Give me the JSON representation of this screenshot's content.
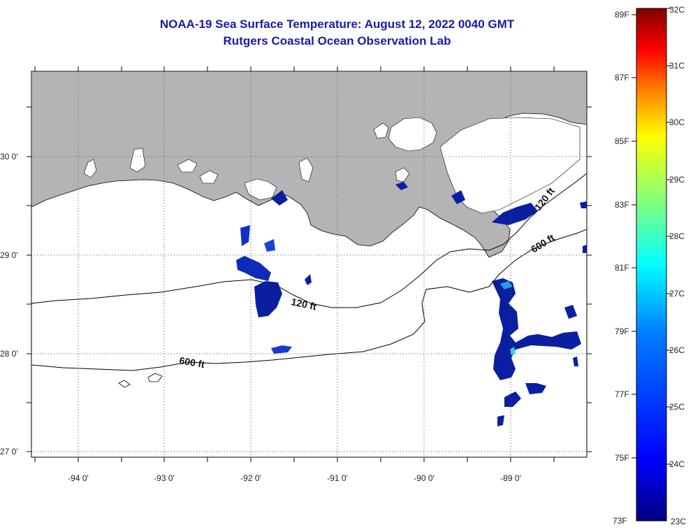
{
  "title": {
    "line1": "NOAA-19 Sea Surface Temperature:  August 12, 2022 0040 GMT",
    "line2": "Rutgers Coastal Ocean Observation Lab"
  },
  "map": {
    "lon_ticks": [
      {
        "value": -94,
        "label": "-94 0'"
      },
      {
        "value": -93,
        "label": "-93 0'"
      },
      {
        "value": -92,
        "label": "-92 0'"
      },
      {
        "value": -91,
        "label": "-91 0'"
      },
      {
        "value": -90,
        "label": "-90 0'"
      },
      {
        "value": -89,
        "label": "-89 0'"
      }
    ],
    "lat_ticks": [
      {
        "value": 30,
        "label": "30 0'"
      },
      {
        "value": 29,
        "label": "29 0'"
      },
      {
        "value": 28,
        "label": "28 0'"
      },
      {
        "value": 27,
        "label": "27 0'"
      }
    ],
    "land_color": "#b4b4b4",
    "cloud_color": "#ffffff",
    "isobath_labels": [
      "120 ft",
      "120 ft",
      "600 ft",
      "600 ft"
    ]
  },
  "colorbar": {
    "fahrenheit": [
      "89F",
      "87F",
      "85F",
      "83F",
      "81F",
      "79F",
      "77F",
      "75F",
      "73F"
    ],
    "celsius": [
      "32C",
      "31C",
      "30C",
      "29C",
      "28C",
      "27C",
      "26C",
      "25C",
      "24C",
      "23C"
    ],
    "colors": [
      "#800000",
      "#ff0000",
      "#ff8000",
      "#ffff00",
      "#80ff80",
      "#00ffff",
      "#0080ff",
      "#0000ff",
      "#000080"
    ]
  }
}
